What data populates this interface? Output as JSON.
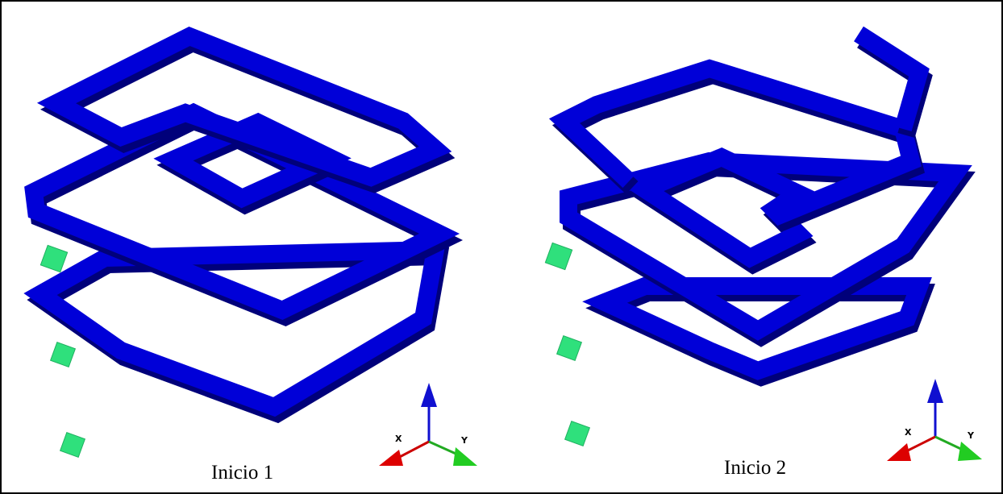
{
  "panels": [
    {
      "caption": "Inicio 1",
      "axes": {
        "x": "X",
        "y": "Y"
      }
    },
    {
      "caption": "Inicio 2",
      "axes": {
        "x": "X",
        "y": "Y"
      }
    }
  ]
}
